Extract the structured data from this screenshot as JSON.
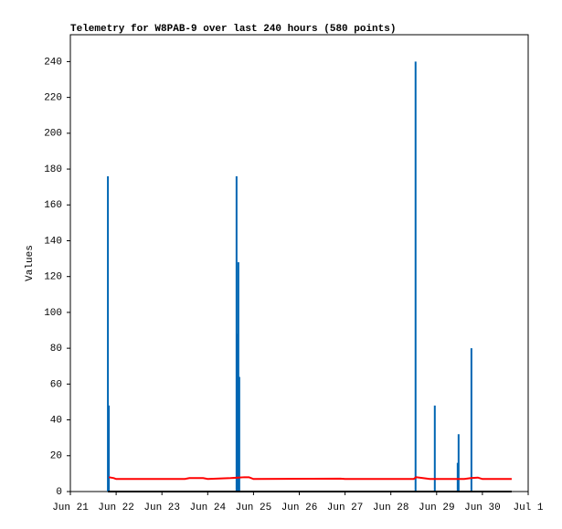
{
  "chart_data": {
    "type": "line",
    "title": "Telemetry for W8PAB-9 over last 240 hours (580 points)",
    "y_label": "Values",
    "xlim": [
      0,
      10
    ],
    "xticks": [
      {
        "value": 0,
        "label": "Jun 21"
      },
      {
        "value": 1,
        "label": "Jun 22"
      },
      {
        "value": 2,
        "label": "Jun 23"
      },
      {
        "value": 3,
        "label": "Jun 24"
      },
      {
        "value": 4,
        "label": "Jun 25"
      },
      {
        "value": 5,
        "label": "Jun 26"
      },
      {
        "value": 6,
        "label": "Jun 27"
      },
      {
        "value": 7,
        "label": "Jun 28"
      },
      {
        "value": 8,
        "label": "Jun 29"
      },
      {
        "value": 9,
        "label": "Jun 30"
      },
      {
        "value": 10,
        "label": "Jul 1"
      }
    ],
    "ylim": [
      0,
      255
    ],
    "yticks": [
      0,
      20,
      40,
      60,
      80,
      100,
      120,
      140,
      160,
      180,
      200,
      220,
      240
    ],
    "grid": false,
    "series": [
      {
        "type": "bar",
        "color": "#0066b3",
        "x": [
          0.82,
          0.84,
          3.63,
          3.65,
          3.67,
          3.69,
          7.54,
          7.96,
          8.46,
          8.48,
          8.76
        ],
        "values": [
          176,
          48,
          176,
          88,
          128,
          64,
          240,
          48,
          16,
          32,
          80
        ]
      },
      {
        "type": "line",
        "color": "#000000",
        "x": [
          0.82,
          9.64
        ],
        "values": [
          0,
          0
        ]
      },
      {
        "type": "line",
        "color": "#ff0000",
        "x": [
          0.84,
          0.95,
          1.0,
          2.5,
          2.6,
          2.9,
          3.0,
          3.5,
          3.8,
          3.9,
          4.0,
          5.9,
          6.0,
          7.5,
          7.55,
          7.7,
          7.85,
          8.6,
          8.75,
          8.9,
          9.0,
          9.64
        ],
        "values": [
          8,
          7.5,
          7,
          7,
          7.5,
          7.5,
          7,
          7.5,
          8,
          8,
          7,
          7.2,
          7,
          7,
          8,
          7.5,
          7,
          7,
          7.5,
          7.8,
          7,
          7
        ]
      }
    ]
  }
}
